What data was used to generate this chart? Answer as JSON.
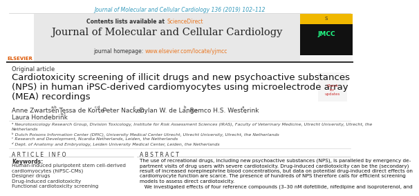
{
  "bg_color": "#ffffff",
  "journal_ref_text": "Journal of Molecular and Cellular Cardiology 136 (2019) 102–112",
  "journal_ref_color": "#3399bb",
  "contents_bg": "#e8e8e8",
  "contents_text": "Contents lists available at ",
  "sciencedirect_text": "ScienceDirect",
  "sciencedirect_color": "#e87722",
  "journal_name": "Journal of Molecular and Cellular Cardiology",
  "homepage_label": "journal homepage: ",
  "homepage_url": "www.elsevier.com/locate/yjmcc",
  "homepage_url_color": "#e87722",
  "original_article_text": "Original article",
  "title_line1": "Cardiotoxicity screening of illicit drugs and new psychoactive substances",
  "title_line2": "(NPS) in human iPSC-derived cardiomyocytes using microelectrode array",
  "title_line3": "(MEA) recordings",
  "affil1": "ᵃ Neurotoxicology Research Group, Division Toxicology, Institute for Risk Assessment Sciences (IRAS), Faculty of Veterinary Medicine, Utrecht University, Utrecht, the",
  "affil1b": "Netherlands",
  "affil2": "ᵇ Dutch Poisons Information Center (DPIC), University Medical Center Utrecht, Utrecht University, Utrecht, the Netherlands",
  "affil3": "ᶜ Research and Development, Ncardia Netherlands, Leiden, the Netherlands",
  "affil4": "ᵈ Dept. of Anatomy and Embryology, Leiden University Medical Center, Leiden, the Netherlands",
  "article_info_title": "A R T I C L E   I N F O",
  "keywords_label": "Keywords:",
  "keywords": [
    "Human-induced pluripotent stem cell-derived",
    "cardiomyocytes (hiPSC-CMs)",
    "Designer drugs",
    "Drug-induced cardiotoxicity",
    "Functional cardiotoxicity screening"
  ],
  "abstract_title": "A B S T R A C T",
  "abstract_lines": [
    "The use of recreational drugs, including new psychoactive substances (NPS), is paralleled by emergency de-",
    "partment visits of drug users with severe cardiotoxicity. Drug-induced cardiotoxicity can be the (secondary)",
    "result of increased norepinephrine blood concentrations, but data on potential drug-induced direct effects on",
    "cardiomyocyte function are scarce. The presence of hundreds of NPS therefore calls for efficient screening",
    "models to assess direct cardiotoxicity.",
    "   We investigated effects of four reference compounds (3–30 nM dofetilide, nifedipine and isoproterenol, and"
  ]
}
